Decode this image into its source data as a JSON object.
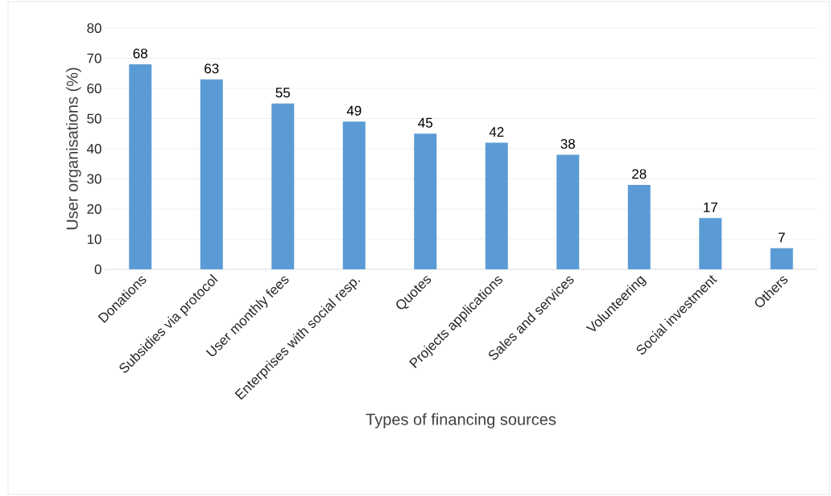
{
  "chart_data": {
    "type": "bar",
    "xlabel": "Types of financing sources",
    "ylabel": "User organisations (%)",
    "categories": [
      "Donations",
      "Subsidies via protocol",
      "User monthly fees",
      "Enterprises with social resp.",
      "Quotes",
      "Projects applications",
      "Sales and services",
      "Volunteering",
      "Social investment",
      "Others"
    ],
    "values": [
      68,
      63,
      55,
      49,
      45,
      42,
      38,
      28,
      17,
      7
    ],
    "color": "#5b9bd5",
    "ylim": [
      0,
      80
    ],
    "yticks": [
      0,
      10,
      20,
      30,
      40,
      50,
      60,
      70,
      80
    ],
    "grid": "y",
    "data_labels": true
  }
}
